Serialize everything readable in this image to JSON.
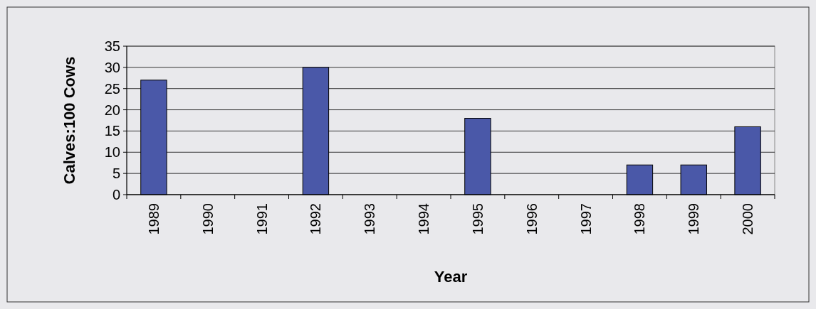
{
  "chart_data": {
    "type": "bar",
    "xlabel": "Year",
    "ylabel": "Calves:100 Cows",
    "categories": [
      "1989",
      "1990",
      "1991",
      "1992",
      "1993",
      "1994",
      "1995",
      "1996",
      "1997",
      "1998",
      "1999",
      "2000"
    ],
    "values": [
      27,
      null,
      null,
      30,
      null,
      null,
      18,
      null,
      null,
      7,
      7,
      16
    ],
    "color": "#4a58a8",
    "ylim": [
      0,
      35
    ],
    "yticks": [
      0,
      5,
      10,
      15,
      20,
      25,
      30,
      35
    ],
    "grid": "y"
  }
}
